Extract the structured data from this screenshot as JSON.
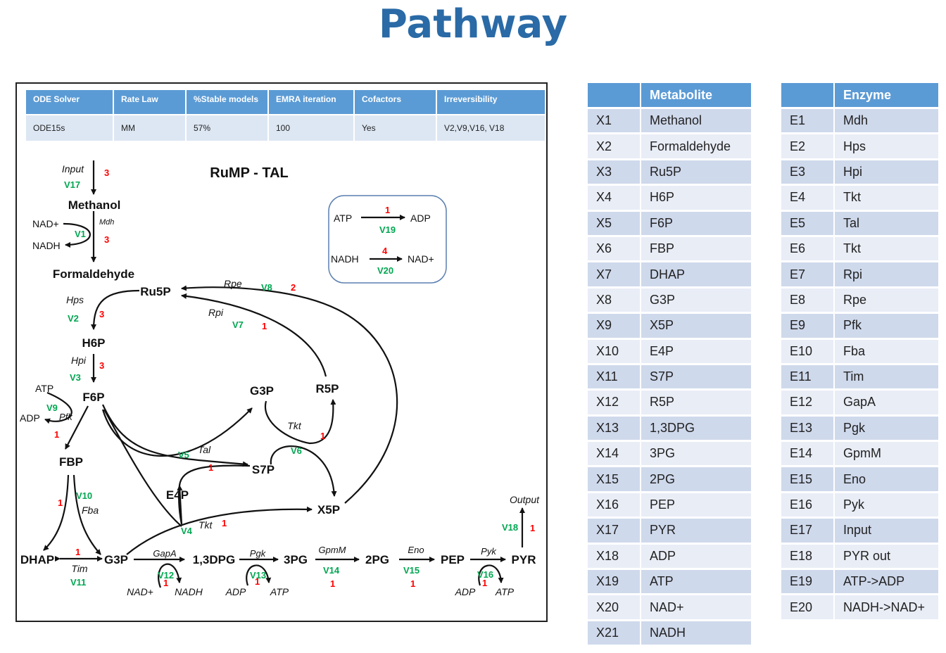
{
  "title": "Pathway",
  "params": {
    "headers": [
      "ODE Solver",
      "Rate Law",
      "%Stable models",
      "EMRA  iteration",
      "Cofactors",
      "Irreversibility"
    ],
    "values": [
      "ODE15s",
      "MM",
      "57%",
      "100",
      "Yes",
      "V2,V9,V16,  V18"
    ]
  },
  "diagram": {
    "heading": "RuMP - TAL",
    "labels": {
      "input": "Input",
      "methanol": "Methanol",
      "nad1": "NAD+",
      "nadh1": "NADH",
      "mdh": "Mdh",
      "formaldehyde": "Formaldehyde",
      "ru5p": "Ru5P",
      "hps": "Hps",
      "h6p": "H6P",
      "hpi": "Hpi",
      "f6p": "F6P",
      "atp1": "ATP",
      "adp1": "ADP",
      "pfk": "Pfk",
      "fbp": "FBP",
      "fba": "Fba",
      "dhap": "DHAP",
      "tim": "Tim",
      "g3p": "G3P",
      "g3p2": "G3P",
      "r5p": "R5P",
      "tkt1": "Tkt",
      "tal": "Tal",
      "s7p": "S7P",
      "e4p": "E4P",
      "x5p": "X5P",
      "tkt2": "Tkt",
      "rpe": "Rpe",
      "rpi": "Rpi",
      "bpg": "1,3DPG",
      "gapa": "GapA",
      "nad2": "NAD+",
      "nadh2": "NADH",
      "pgk": "Pgk",
      "adp2": "ADP",
      "atp2": "ATP",
      "pg3": "3PG",
      "gpmm": "GpmM",
      "pg2": "2PG",
      "eno": "Eno",
      "pep": "PEP",
      "pyk": "Pyk",
      "adp3": "ADP",
      "atp3": "ATP",
      "pyr": "PYR",
      "output": "Output",
      "box_atp": "ATP",
      "box_adp": "ADP",
      "box_nadh": "NADH",
      "box_nad": "NAD+"
    },
    "reactions": {
      "v1": "V1",
      "v2": "V2",
      "v3": "V3",
      "v4": "V4",
      "v5": "V5",
      "v6": "V6",
      "v7": "V7",
      "v8": "V8",
      "v9": "V9",
      "v10": "V10",
      "v11": "V11",
      "v12": "V12",
      "v13": "V13",
      "v14": "V14",
      "v15": "V15",
      "v16": "V16",
      "v17": "V17",
      "v18": "V18",
      "v19": "V19",
      "v20": "V20"
    },
    "counts": {
      "v1": "3",
      "v2": "3",
      "v3": "3",
      "v4": "1",
      "v5": "1",
      "v6": "1",
      "v7": "1",
      "v8": "2",
      "v9": "1",
      "v10": "1",
      "v11": "1",
      "v12": "1",
      "v13": "1",
      "v14": "1",
      "v15": "1",
      "v16": "1",
      "v17": "3",
      "v18": "1",
      "v19": "1",
      "v20": "4"
    },
    "colors": {
      "reaction": "#00a651",
      "count": "#ff0000",
      "edge": "#111111"
    }
  },
  "metabolites": {
    "header": [
      "",
      "Metabolite"
    ],
    "rows": [
      [
        "X1",
        "Methanol"
      ],
      [
        "X2",
        "Formaldehyde"
      ],
      [
        "X3",
        "Ru5P"
      ],
      [
        "X4",
        "H6P"
      ],
      [
        "X5",
        "F6P"
      ],
      [
        "X6",
        "FBP"
      ],
      [
        "X7",
        "DHAP"
      ],
      [
        "X8",
        "G3P"
      ],
      [
        "X9",
        "X5P"
      ],
      [
        "X10",
        "E4P"
      ],
      [
        "X11",
        "S7P"
      ],
      [
        "X12",
        "R5P"
      ],
      [
        "X13",
        "1,3DPG"
      ],
      [
        "X14",
        "3PG"
      ],
      [
        "X15",
        "2PG"
      ],
      [
        "X16",
        "PEP"
      ],
      [
        "X17",
        "PYR"
      ],
      [
        "X18",
        "ADP"
      ],
      [
        "X19",
        "ATP"
      ],
      [
        "X20",
        "NAD+"
      ],
      [
        "X21",
        "NADH"
      ]
    ]
  },
  "enzymes": {
    "header": [
      "",
      "Enzyme"
    ],
    "rows": [
      [
        "E1",
        "Mdh"
      ],
      [
        "E2",
        "Hps"
      ],
      [
        "E3",
        "Hpi"
      ],
      [
        "E4",
        "Tkt"
      ],
      [
        "E5",
        "Tal"
      ],
      [
        "E6",
        "Tkt"
      ],
      [
        "E7",
        "Rpi"
      ],
      [
        "E8",
        "Rpe"
      ],
      [
        "E9",
        "Pfk"
      ],
      [
        "E10",
        "Fba"
      ],
      [
        "E11",
        "Tim"
      ],
      [
        "E12",
        "GapA"
      ],
      [
        "E13",
        "Pgk"
      ],
      [
        "E14",
        "GpmM"
      ],
      [
        "E15",
        "Eno"
      ],
      [
        "E16",
        "Pyk"
      ],
      [
        "E17",
        "Input"
      ],
      [
        "E18",
        "PYR out"
      ],
      [
        "E19",
        "ATP->ADP"
      ],
      [
        "E20",
        "NADH->NAD+"
      ]
    ]
  }
}
